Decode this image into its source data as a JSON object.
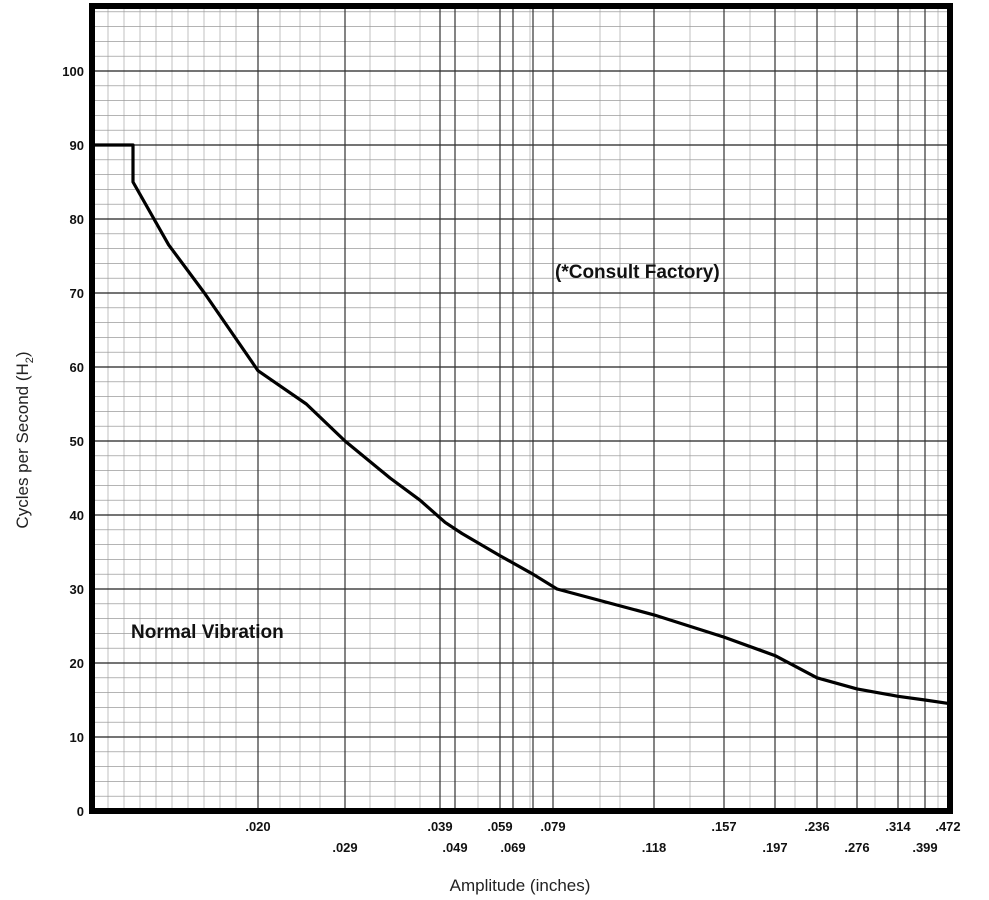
{
  "chart_data": {
    "type": "line",
    "xlabel": "Amplitude (inches)",
    "ylabel_main": "Cycles per Second (H",
    "ylabel_sub": "2",
    "ylabel_close": ")",
    "ylim": [
      0,
      108
    ],
    "y_ticks": [
      0,
      10,
      20,
      30,
      40,
      50,
      60,
      70,
      80,
      90,
      100
    ],
    "y_tick_labels": [
      "0",
      "10",
      "20",
      "30",
      "40",
      "50",
      "60",
      "70",
      "80",
      "90",
      "100"
    ],
    "x_tick_labels": [
      ".020",
      ".029",
      ".039",
      ".049",
      ".059",
      ".069",
      ".079",
      ".118",
      ".157",
      ".197",
      ".236",
      ".276",
      ".314",
      ".399",
      ".472"
    ],
    "grid": true,
    "annotations": [
      {
        "text": "(*Consult Factory)"
      },
      {
        "text": "Normal Vibration"
      }
    ],
    "series": [
      {
        "x": [
          0.0,
          0.006,
          0.006,
          0.01,
          0.014,
          0.02,
          0.025,
          0.029,
          0.035,
          0.039,
          0.045,
          0.049,
          0.059,
          0.069,
          0.079,
          0.118,
          0.157,
          0.197,
          0.236,
          0.276,
          0.314,
          0.399,
          0.472
        ],
        "y": [
          90,
          90,
          85,
          76.5,
          70,
          59.5,
          55,
          50,
          45,
          42,
          39,
          37.5,
          34.5,
          32,
          30,
          26.5,
          23.5,
          21,
          18,
          16.5,
          15.5,
          15,
          14.5
        ]
      }
    ]
  }
}
